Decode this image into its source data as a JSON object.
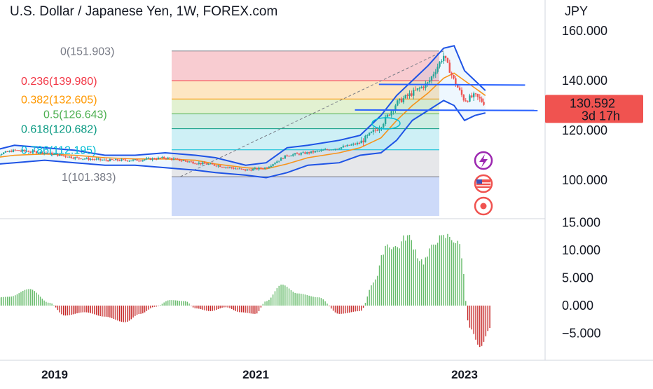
{
  "header": {
    "title": "U.S. Dollar / Japanese Yen, 1W, FOREX.com",
    "currency": "JPY"
  },
  "price_badge": {
    "price": "130.592",
    "countdown": "3d 17h",
    "color": "#f05350"
  },
  "side_icons": [
    {
      "name": "flash-icon",
      "color": "#9c27b0"
    },
    {
      "name": "us-flag-icon",
      "color": "#f05350"
    },
    {
      "name": "record-icon",
      "color": "#f05350"
    }
  ],
  "chart_data": [
    {
      "type": "candlestick",
      "title": "U.S. Dollar / Japanese Yen, 1W, FOREX.com",
      "y_axis_ticks": [
        "160.000",
        "140.000",
        "120.000",
        "100.000"
      ],
      "ylim": [
        88,
        167
      ],
      "x_ticks": [
        "2019",
        "2021",
        "2023"
      ],
      "fibonacci": [
        {
          "label": "0(151.903)",
          "level": 151.903,
          "color": "#787b86",
          "fill": null
        },
        {
          "label": "0.236(139.980)",
          "level": 139.98,
          "color": "#f23645",
          "fill": "#f7c6cc"
        },
        {
          "label": "0.382(132.605)",
          "level": 132.605,
          "color": "#ff9800",
          "fill": "#fde3bd"
        },
        {
          "label": "0.5(126.643)",
          "level": 126.643,
          "color": "#4caf50",
          "fill": "#dff0cc"
        },
        {
          "label": "0.618(120.682)",
          "level": 120.682,
          "color": "#089981",
          "fill": "#c9ebe0"
        },
        {
          "label": "0.786(112.195)",
          "level": 112.195,
          "color": "#00bcd4",
          "fill": "#c9eef5"
        },
        {
          "label": "1(101.383)",
          "level": 101.383,
          "color": "#787b86",
          "fill": "#e3e4e8"
        }
      ],
      "fib_extension_fill": "#c8d6f8",
      "price_series": {
        "dates": [
          2018.3,
          2018.6,
          2018.9,
          2019.2,
          2019.5,
          2019.8,
          2020.1,
          2020.4,
          2020.6,
          2020.9,
          2021.1,
          2021.3,
          2021.5,
          2021.8,
          2022.0,
          2022.2,
          2022.35,
          2022.5,
          2022.65,
          2022.8,
          2022.9,
          2023.0,
          2023.1,
          2023.2
        ],
        "close": [
          109,
          112,
          111,
          109,
          108,
          108,
          109,
          107,
          106,
          104,
          105,
          110,
          111,
          113,
          115,
          122,
          131,
          135,
          139,
          150,
          140,
          132,
          134,
          130.592
        ],
        "ma": [
          108.5,
          110,
          110.5,
          110,
          109,
          108.5,
          108.5,
          108,
          106.5,
          105,
          104.5,
          106.5,
          109,
          111,
          113,
          117,
          124,
          130,
          135,
          141,
          143,
          140,
          137,
          134
        ],
        "upper_band": [
          111,
          114,
          113,
          112,
          110,
          110,
          111,
          110,
          109,
          106,
          107,
          113,
          114,
          116,
          118,
          126,
          134,
          140,
          146,
          153,
          154,
          144,
          140,
          136
        ],
        "lower_band": [
          106,
          107,
          108,
          107,
          106,
          106,
          105,
          104,
          103,
          102,
          101,
          103,
          106,
          107,
          110,
          111,
          116,
          124,
          128,
          132,
          130,
          124,
          126,
          127
        ]
      },
      "resistance_lines": [
        {
          "from": [
            2022.18,
            138.5
          ],
          "to": [
            2023.58,
            138.2
          ]
        },
        {
          "from": [
            2021.95,
            128.2
          ],
          "to": [
            2023.7,
            128.0
          ]
        }
      ],
      "fib_anchor_line": {
        "from": [
          2020.25,
          101.383
        ],
        "to": [
          2022.8,
          151.903
        ]
      }
    },
    {
      "type": "bar",
      "title": "",
      "y_axis_ticks": [
        "15.000",
        "10.000",
        "5.000",
        "0.000",
        "−5.000"
      ],
      "ylim": [
        -9,
        15.5
      ],
      "positive_color": "#66bb6a",
      "negative_color": "#c62828",
      "keypoints_x": [
        2018.3,
        2018.55,
        2018.75,
        2018.95,
        2019.1,
        2019.3,
        2019.5,
        2019.7,
        2019.85,
        2020.0,
        2020.15,
        2020.3,
        2020.4,
        2020.55,
        2020.7,
        2020.85,
        2021.0,
        2021.1,
        2021.25,
        2021.4,
        2021.6,
        2021.8,
        2022.0,
        2022.15,
        2022.25,
        2022.35,
        2022.45,
        2022.6,
        2022.75,
        2022.85,
        2022.95,
        2023.05,
        2023.15,
        2023.25
      ],
      "keypoints_y": [
        1.2,
        1.6,
        3.0,
        0.5,
        -1.8,
        -1.2,
        -2.0,
        -3.0,
        -1.5,
        -0.2,
        1.0,
        0.8,
        -0.5,
        -1.0,
        -0.3,
        -1.2,
        -1.5,
        0.8,
        3.8,
        2.2,
        1.5,
        -1.5,
        -1.0,
        5.0,
        11.0,
        10.5,
        12.5,
        8.0,
        12.0,
        12.5,
        11.0,
        -4.0,
        -7.5,
        -4.0
      ]
    }
  ]
}
